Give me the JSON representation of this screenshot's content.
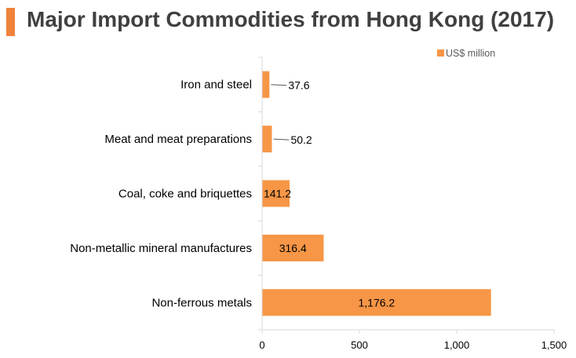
{
  "title": "Major Import Commodities from Hong Kong (2017)",
  "colors": {
    "accent": "#f0823c",
    "bar": "#f79646",
    "axis": "#d9d9d9",
    "text": "#000000",
    "title": "#404040"
  },
  "chart_data": {
    "type": "bar",
    "orientation": "horizontal",
    "title": "Major Import Commodities from Hong Kong (2017)",
    "xlabel": "",
    "ylabel": "",
    "xlim": [
      0,
      1500
    ],
    "xticks": [
      0,
      500,
      1000,
      1500
    ],
    "xtick_labels": [
      "0",
      "500",
      "1,000",
      "1,500"
    ],
    "categories": [
      "Iron and steel",
      "Meat and meat preparations",
      "Coal, coke and briquettes",
      "Non-metallic mineral manufactures",
      "Non-ferrous metals"
    ],
    "series": [
      {
        "name": "US$ million",
        "values": [
          37.6,
          50.2,
          141.2,
          316.4,
          1176.2
        ],
        "labels": [
          "37.6",
          "50.2",
          "141.2",
          "316.4",
          "1,176.2"
        ]
      }
    ],
    "legend": "top-right",
    "grid": false
  }
}
